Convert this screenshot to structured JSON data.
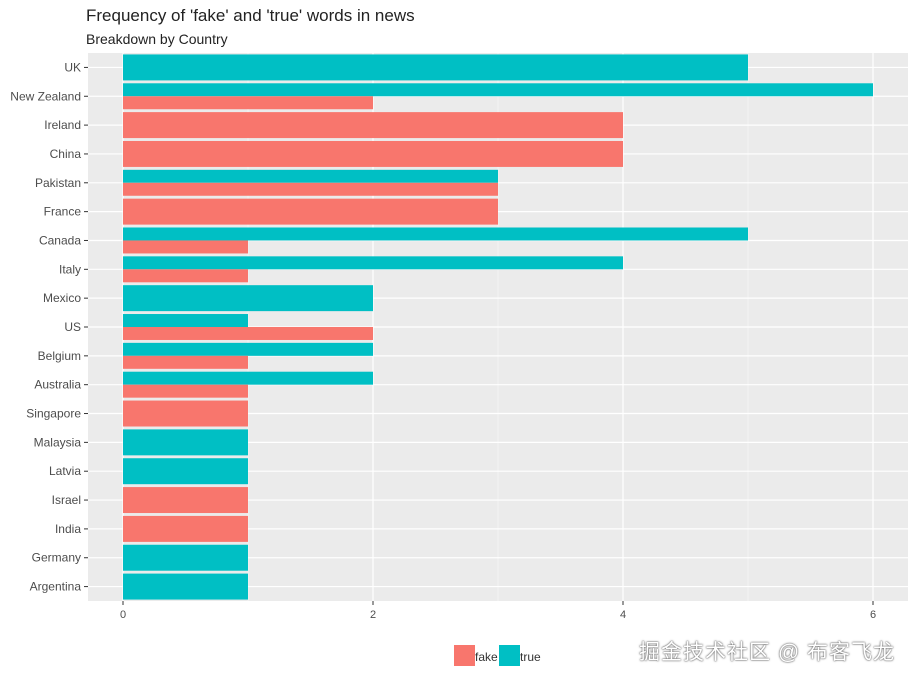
{
  "chart_data": {
    "type": "bar",
    "orientation": "horizontal",
    "title": "Frequency of 'fake' and 'true' words in news",
    "subtitle": "Breakdown by Country",
    "xlabel": "",
    "ylabel": "",
    "categories": [
      "UK",
      "New Zealand",
      "Ireland",
      "China",
      "Pakistan",
      "France",
      "Canada",
      "Italy",
      "Mexico",
      "US",
      "Belgium",
      "Australia",
      "Singapore",
      "Malaysia",
      "Latvia",
      "Israel",
      "India",
      "Germany",
      "Argentina"
    ],
    "series": [
      {
        "name": "fake",
        "color": "#F8766D",
        "values": [
          0,
          2,
          4,
          4,
          3,
          3,
          1,
          1,
          0,
          2,
          1,
          1,
          1,
          0,
          0,
          1,
          1,
          0,
          0
        ]
      },
      {
        "name": "true",
        "color": "#00BFC4",
        "values": [
          5,
          6,
          0,
          0,
          3,
          0,
          5,
          4,
          2,
          1,
          2,
          2,
          0,
          1,
          1,
          0,
          0,
          1,
          1
        ]
      }
    ],
    "xlim": [
      -0.28,
      6.28
    ],
    "xticks": [
      0,
      2,
      4,
      6
    ],
    "grid": true,
    "legend": "bottom"
  },
  "watermark": "掘金技术社区 @ 布客飞龙"
}
